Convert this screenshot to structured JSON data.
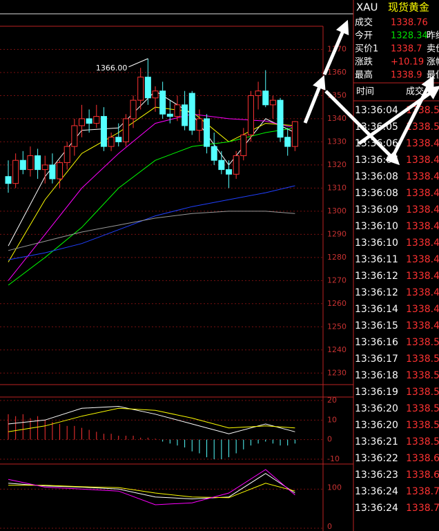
{
  "chart_data": {
    "type": "candlestick",
    "max_label": "1366.00",
    "open": [
      1315,
      1312,
      1322,
      1318,
      1324,
      1318,
      1320,
      1314,
      1321,
      1328,
      1337,
      1340,
      1338,
      1341,
      1328,
      1332,
      1330,
      1340,
      1348,
      1358,
      1349,
      1352,
      1342,
      1341,
      1346,
      1351,
      1335,
      1340,
      1328,
      1322,
      1318,
      1316,
      1324,
      1333,
      1350,
      1352,
      1346,
      1348,
      1332,
      1328
    ],
    "high": [
      1322,
      1325,
      1326,
      1328,
      1327,
      1324,
      1325,
      1322,
      1330,
      1340,
      1346,
      1344,
      1346,
      1345,
      1334,
      1338,
      1342,
      1350,
      1362,
      1366,
      1354,
      1356,
      1348,
      1350,
      1352,
      1352,
      1344,
      1342,
      1334,
      1326,
      1322,
      1326,
      1336,
      1352,
      1356,
      1361,
      1350,
      1349,
      1336,
      1339
    ],
    "low": [
      1308,
      1310,
      1316,
      1315,
      1314,
      1312,
      1312,
      1310,
      1318,
      1324,
      1332,
      1334,
      1336,
      1326,
      1326,
      1328,
      1328,
      1336,
      1344,
      1346,
      1343,
      1340,
      1338,
      1339,
      1335,
      1333,
      1330,
      1325,
      1320,
      1316,
      1310,
      1314,
      1322,
      1330,
      1344,
      1345,
      1340,
      1330,
      1324,
      1326
    ],
    "close": [
      1312,
      1322,
      1318,
      1324,
      1318,
      1320,
      1314,
      1321,
      1328,
      1337,
      1340,
      1338,
      1341,
      1328,
      1332,
      1330,
      1340,
      1348,
      1358,
      1349,
      1352,
      1342,
      1341,
      1346,
      1337,
      1335,
      1340,
      1328,
      1322,
      1318,
      1316,
      1324,
      1333,
      1350,
      1352,
      1346,
      1348,
      1332,
      1328,
      1338.76
    ],
    "up_color": "#ff3232",
    "down_color": "#54ffff",
    "ylim": [
      1225,
      1380
    ],
    "yticks": [
      1230,
      1240,
      1250,
      1260,
      1270,
      1280,
      1290,
      1300,
      1310,
      1320,
      1330,
      1340,
      1350,
      1360,
      1370
    ],
    "ma_lines": [
      {
        "color": "#ffffff",
        "x": [
          0,
          5,
          10,
          15,
          20,
          25,
          30,
          35,
          39
        ],
        "values": [
          1285,
          1315,
          1335,
          1336,
          1352,
          1342,
          1320,
          1340,
          1334
        ]
      },
      {
        "color": "#ffff00",
        "x": [
          0,
          5,
          10,
          15,
          20,
          25,
          30,
          35,
          39
        ],
        "values": [
          1278,
          1305,
          1325,
          1334,
          1345,
          1343,
          1330,
          1338,
          1337
        ]
      },
      {
        "color": "#ff00ff",
        "x": [
          0,
          5,
          10,
          15,
          20,
          25,
          30,
          35,
          39
        ],
        "values": [
          1270,
          1290,
          1310,
          1325,
          1338,
          1342,
          1340,
          1339,
          1336
        ]
      },
      {
        "color": "#00ff00",
        "x": [
          0,
          5,
          10,
          15,
          20,
          25,
          30,
          35,
          39
        ],
        "values": [
          1268,
          1280,
          1293,
          1310,
          1322,
          1328,
          1330,
          1334,
          1336
        ]
      },
      {
        "color": "#2040ff",
        "x": [
          0,
          5,
          10,
          15,
          20,
          25,
          30,
          35,
          39
        ],
        "values": [
          1279,
          1282,
          1286,
          1292,
          1298,
          1302,
          1305,
          1308,
          1311
        ]
      },
      {
        "color": "#999999",
        "x": [
          0,
          5,
          10,
          15,
          20,
          25,
          30,
          35,
          39
        ],
        "values": [
          1283,
          1287,
          1291,
          1294,
          1297,
          1299,
          1300,
          1300,
          1299
        ]
      }
    ],
    "macd": {
      "ylim": [
        -10,
        20
      ],
      "yticks": [
        20,
        10,
        0,
        -10
      ],
      "hist": [
        13,
        12,
        13,
        11,
        12,
        10,
        9,
        8,
        7,
        7,
        6,
        5,
        4,
        3,
        3,
        2,
        2,
        2,
        1,
        1,
        0.5,
        -1,
        -2,
        -3,
        -4,
        -6,
        -7,
        -9,
        -10,
        -10,
        -9,
        -7,
        -5,
        -3,
        -2,
        -1,
        -2,
        -3,
        -3,
        -2
      ],
      "lines": [
        {
          "color": "#ffffff",
          "x": [
            0,
            5,
            10,
            15,
            20,
            25,
            30,
            35,
            39
          ],
          "values": [
            8,
            10,
            16,
            17,
            13,
            8,
            3,
            8,
            4
          ]
        },
        {
          "color": "#ffff00",
          "x": [
            0,
            5,
            10,
            15,
            20,
            25,
            30,
            35,
            39
          ],
          "values": [
            4,
            7,
            12,
            16,
            15,
            11,
            6,
            7,
            6
          ]
        }
      ]
    },
    "kdj": {
      "ylim": [
        0,
        150
      ],
      "yticks": [
        100,
        0
      ],
      "lines": [
        {
          "color": "#ffffff",
          "x": [
            0,
            5,
            10,
            15,
            20,
            25,
            30,
            35,
            39
          ],
          "values": [
            115,
            108,
            105,
            100,
            80,
            75,
            80,
            140,
            90
          ]
        },
        {
          "color": "#ffff00",
          "x": [
            0,
            5,
            10,
            15,
            20,
            25,
            30,
            35,
            39
          ],
          "values": [
            110,
            110,
            106,
            104,
            90,
            80,
            78,
            115,
            95
          ]
        },
        {
          "color": "#ff00ff",
          "x": [
            0,
            5,
            10,
            15,
            20,
            25,
            30,
            35,
            39
          ],
          "values": [
            125,
            105,
            100,
            95,
            60,
            65,
            90,
            150,
            85
          ]
        }
      ]
    }
  },
  "quote": {
    "symbol": "XAU",
    "name": "现货黄金",
    "rows": [
      {
        "label": "成交",
        "value": "1338.76",
        "color": "#ff3232",
        "label2": ""
      },
      {
        "label": "今开",
        "value": "1328.34",
        "color": "#00e000",
        "label2": "昨结"
      },
      {
        "label": "买价1",
        "value": "1338.7",
        "color": "#ff3232",
        "label2": "卖价"
      },
      {
        "label": "涨跌",
        "value": "+10.19",
        "color": "#ff3232",
        "label2": "涨幅"
      },
      {
        "label": "最高",
        "value": "1338.9",
        "color": "#ff3232",
        "label2": "最低"
      }
    ]
  },
  "trades": {
    "header": [
      "时间",
      "成交"
    ],
    "rows": [
      [
        "13:36:04",
        "1338.5"
      ],
      [
        "13:36:05",
        "1338.5"
      ],
      [
        "13:36:06",
        "1338.4"
      ],
      [
        "13:36:07",
        "1338.4"
      ],
      [
        "13:36:08",
        "1338.4"
      ],
      [
        "13:36:08",
        "1338.4"
      ],
      [
        "13:36:09",
        "1338.4"
      ],
      [
        "13:36:10",
        "1338.4"
      ],
      [
        "13:36:10",
        "1338.4"
      ],
      [
        "13:36:11",
        "1338.4"
      ],
      [
        "13:36:12",
        "1338.4"
      ],
      [
        "13:36:12",
        "1338.4"
      ],
      [
        "13:36:14",
        "1338.4"
      ],
      [
        "13:36:15",
        "1338.4"
      ],
      [
        "13:36:16",
        "1338.5"
      ],
      [
        "13:36:17",
        "1338.5"
      ],
      [
        "13:36:18",
        "1338.5"
      ],
      [
        "13:36:19",
        "1338.5"
      ],
      [
        "13:36:20",
        "1338.5"
      ],
      [
        "13:36:20",
        "1338.5"
      ],
      [
        "13:36:21",
        "1338.5"
      ],
      [
        "13:36:22",
        "1338.6"
      ],
      [
        "13:36:23",
        "1338.6"
      ],
      [
        "13:36:24",
        "1338.7"
      ],
      [
        "13:36:24",
        "1338.7"
      ]
    ]
  }
}
